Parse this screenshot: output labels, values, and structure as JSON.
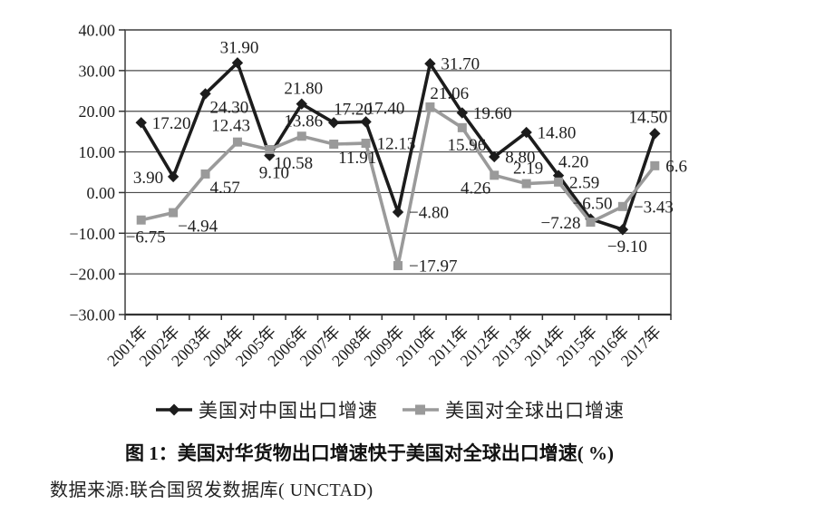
{
  "chart_data": {
    "type": "line",
    "title": "图 1：美国对华货物出口增速快于美国对全球出口增速( %)",
    "source": "数据来源:联合国贸发数据库( UNCTAD)",
    "categories": [
      "2001年",
      "2002年",
      "2003年",
      "2004年",
      "2005年",
      "2006年",
      "2007年",
      "2008年",
      "2009年",
      "2010年",
      "2011年",
      "2012年",
      "2013年",
      "2014年",
      "2015年",
      "2016年",
      "2017年"
    ],
    "y_axis": {
      "min": -30,
      "max": 40,
      "step": 10,
      "tick_labels": [
        "40.00",
        "30.00",
        "20.00",
        "10.00",
        "0.00",
        "−10.00",
        "−20.00",
        "−30.00"
      ]
    },
    "grid": true,
    "legend_position": "bottom",
    "series": [
      {
        "name": "美国对中国出口增速",
        "color": "#1c1c1c",
        "marker": "diamond",
        "values": [
          17.2,
          3.9,
          24.3,
          31.9,
          9.1,
          21.8,
          17.2,
          17.4,
          -4.8,
          31.7,
          19.6,
          8.8,
          14.8,
          4.2,
          -6.5,
          -9.1,
          14.5
        ],
        "point_labels": [
          "17.20",
          "3.90",
          "24.30",
          "31.90",
          "9.10",
          "21.80",
          "17.20",
          "17.40",
          "−4.80",
          "31.70",
          "19.60",
          "8.80",
          "14.80",
          "4.20",
          "−6.50",
          "−9.10",
          "14.50"
        ],
        "label_positions": [
          "right",
          "left",
          "below-right",
          "above",
          "below",
          "above",
          "above-right",
          "above-right",
          "right",
          "right",
          "right",
          "right",
          "right",
          "above-right",
          "above",
          "below",
          "above-left"
        ]
      },
      {
        "name": "美国对全球出口增速",
        "color": "#9a9a9a",
        "marker": "square",
        "values": [
          -6.75,
          -4.94,
          4.57,
          12.43,
          10.58,
          13.86,
          11.91,
          12.13,
          -17.97,
          21.06,
          15.96,
          4.26,
          2.19,
          2.59,
          -7.28,
          -3.43,
          6.6
        ],
        "point_labels": [
          "−6.75",
          "−4.94",
          "4.57",
          "12.43",
          "10.58",
          "13.86",
          "11.91",
          "12.13",
          "−17.97",
          "21.06",
          "15.96",
          "4.26",
          "2.19",
          "2.59",
          "−7.28",
          "−3.43",
          "6.6"
        ],
        "label_positions": [
          "below",
          "below-right",
          "below-right",
          "above-left",
          "below-right",
          "above",
          "below-right",
          "right",
          "right",
          "above-right",
          "below",
          "below-left",
          "above",
          "right",
          "left",
          "right",
          "right"
        ]
      }
    ]
  }
}
